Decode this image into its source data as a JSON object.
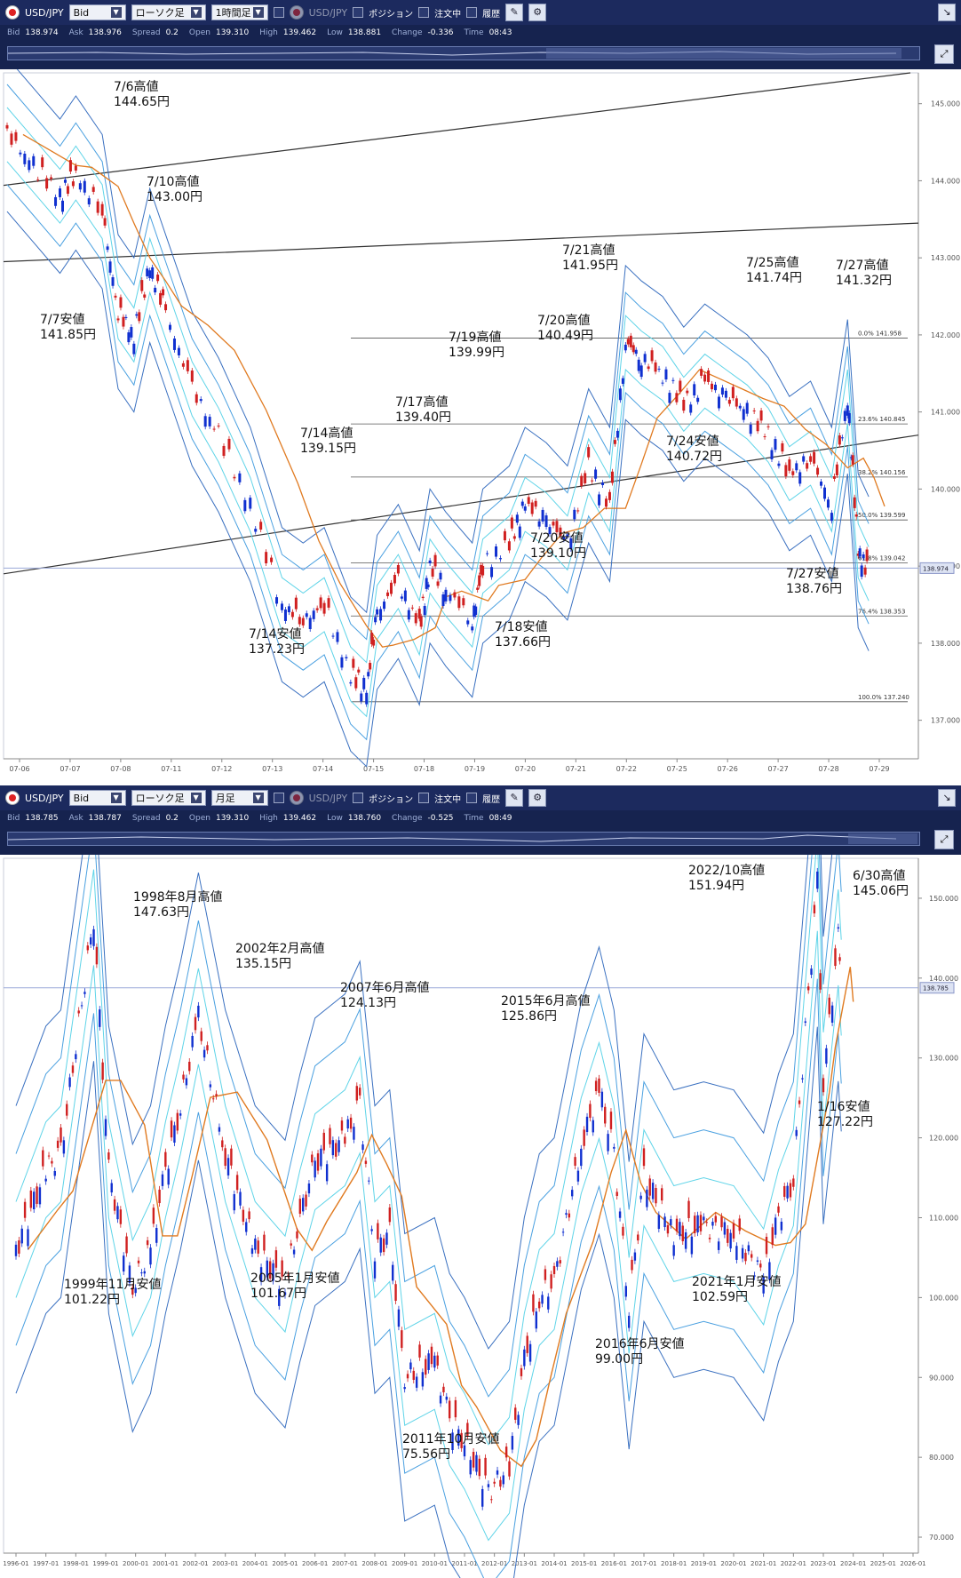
{
  "panels": [
    {
      "toolbar": {
        "symbol": "USD/JPY",
        "price_type": "Bid",
        "chart_type": "ローソク足",
        "timeframe": "1時間足",
        "symbol2": "USD/JPY",
        "position": "ポジション",
        "orders": "注文中",
        "history": "履歴"
      },
      "status": {
        "bid_label": "Bid",
        "bid": "138.974",
        "ask_label": "Ask",
        "ask": "138.976",
        "spread_label": "Spread",
        "spread": "0.2",
        "open_label": "Open",
        "open": "139.310",
        "high_label": "High",
        "high": "139.462",
        "low_label": "Low",
        "low": "138.881",
        "change_label": "Change",
        "change": "-0.336",
        "time_label": "Time",
        "time": "08:43"
      }
    },
    {
      "toolbar": {
        "symbol": "USD/JPY",
        "price_type": "Bid",
        "chart_type": "ローソク足",
        "timeframe": "月足",
        "symbol2": "USD/JPY",
        "position": "ポジション",
        "orders": "注文中",
        "history": "履歴"
      },
      "status": {
        "bid_label": "Bid",
        "bid": "138.785",
        "ask_label": "Ask",
        "ask": "138.787",
        "spread_label": "Spread",
        "spread": "0.2",
        "open_label": "Open",
        "open": "139.310",
        "high_label": "High",
        "high": "139.462",
        "low_label": "Low",
        "low": "138.760",
        "change_label": "Change",
        "change": "-0.525",
        "time_label": "Time",
        "time": "08:49"
      }
    }
  ],
  "chart_data": [
    {
      "type": "line",
      "title": "USD/JPY 1時間足",
      "y_ticks": [
        "137.000",
        "138.000",
        "139.000",
        "140.000",
        "141.000",
        "142.000",
        "143.000",
        "144.000",
        "145.000"
      ],
      "ylim": [
        136.5,
        145.4
      ],
      "current_price": "138.974",
      "x_ticks": [
        "07-06",
        "07-07",
        "07-08",
        "07-11",
        "07-12",
        "07-13",
        "07-14",
        "07-15",
        "07-18",
        "07-19",
        "07-20",
        "07-21",
        "07-22",
        "07-25",
        "07-26",
        "07-27",
        "07-28",
        "07-29"
      ],
      "series": [
        {
          "values": [
            [
              0,
              144.6
            ],
            [
              0.5,
              144.2
            ],
            [
              1,
              143.8
            ],
            [
              1.3,
              144.1
            ],
            [
              1.8,
              143.6
            ],
            [
              2.1,
              142.3
            ],
            [
              2.4,
              142.0
            ],
            [
              2.7,
              142.9
            ],
            [
              3.0,
              142.3
            ],
            [
              3.5,
              141.3
            ],
            [
              4.0,
              140.7
            ],
            [
              4.6,
              139.8
            ],
            [
              5.2,
              138.5
            ],
            [
              5.6,
              138.3
            ],
            [
              6.0,
              138.5
            ],
            [
              6.5,
              137.6
            ],
            [
              6.8,
              137.4
            ],
            [
              7.0,
              138.4
            ],
            [
              7.4,
              138.8
            ],
            [
              7.8,
              138.2
            ],
            [
              8.0,
              139.0
            ],
            [
              8.3,
              138.7
            ],
            [
              8.8,
              138.3
            ],
            [
              9.0,
              139.0
            ],
            [
              9.5,
              139.3
            ],
            [
              9.8,
              139.8
            ],
            [
              10.2,
              139.6
            ],
            [
              10.6,
              139.3
            ],
            [
              11.0,
              140.3
            ],
            [
              11.4,
              139.8
            ],
            [
              11.7,
              141.9
            ],
            [
              12.0,
              141.7
            ],
            [
              12.4,
              141.5
            ],
            [
              12.8,
              141.1
            ],
            [
              13.2,
              141.4
            ],
            [
              13.6,
              141.2
            ],
            [
              14.0,
              141.0
            ],
            [
              14.4,
              140.7
            ],
            [
              14.8,
              140.2
            ],
            [
              15.2,
              140.4
            ],
            [
              15.6,
              139.8
            ],
            [
              15.9,
              141.2
            ],
            [
              16.1,
              139.2
            ],
            [
              16.3,
              138.9
            ]
          ]
        }
      ],
      "fib_levels": [
        {
          "label": "0.0%",
          "value": "141.958"
        },
        {
          "label": "23.6%",
          "value": "140.845"
        },
        {
          "label": "38.2%",
          "value": "140.156"
        },
        {
          "label": "50.0%",
          "value": "139.599"
        },
        {
          "label": "61.8%",
          "value": "139.042"
        },
        {
          "label": "76.4%",
          "value": "138.353"
        },
        {
          "label": "100.0%",
          "value": "137.240"
        }
      ],
      "annotations": [
        [
          "7/6高値",
          "144.65円"
        ],
        [
          "7/10高値",
          "143.00円"
        ],
        [
          "7/7安値",
          "141.85円"
        ],
        [
          "7/14高値",
          "139.15円"
        ],
        [
          "7/17高値",
          "139.40円"
        ],
        [
          "7/19高値",
          "139.99円"
        ],
        [
          "7/20高値",
          "140.49円"
        ],
        [
          "7/21高値",
          "141.95円"
        ],
        [
          "7/25高値",
          "141.74円"
        ],
        [
          "7/27高値",
          "141.32円"
        ],
        [
          "7/24安値",
          "140.72円"
        ],
        [
          "7/20安値",
          "139.10円"
        ],
        [
          "7/27安値",
          "138.76円"
        ],
        [
          "7/14安値",
          "137.23円"
        ],
        [
          "7/18安値",
          "137.66円"
        ]
      ]
    },
    {
      "type": "line",
      "title": "USD/JPY 月足",
      "y_ticks": [
        "70.000",
        "80.000",
        "90.000",
        "100.000",
        "110.000",
        "120.000",
        "130.000",
        "140.000",
        "150.000"
      ],
      "ylim": [
        68,
        155
      ],
      "current_price": "138.785",
      "x_ticks": [
        "1996-01",
        "1997-01",
        "1998-01",
        "1999-01",
        "2000-01",
        "2001-01",
        "2002-01",
        "2003-01",
        "2004-01",
        "2005-01",
        "2006-01",
        "2007-01",
        "2008-01",
        "2009-01",
        "2010-01",
        "2011-01",
        "2012-01",
        "2013-01",
        "2014-01",
        "2015-01",
        "2016-01",
        "2017-01",
        "2018-01",
        "2019-01",
        "2020-01",
        "2021-01",
        "2022-01",
        "2023-01",
        "2024-01",
        "2025-01",
        "2026-01"
      ],
      "series": [
        {
          "values": [
            [
              1996.0,
              106
            ],
            [
              1997.0,
              116
            ],
            [
              1997.5,
              118
            ],
            [
              1998.6,
              147.6
            ],
            [
              1999.1,
              116
            ],
            [
              1999.9,
              101.2
            ],
            [
              2000.5,
              106
            ],
            [
              2001.0,
              116
            ],
            [
              2001.5,
              124
            ],
            [
              2002.1,
              135.2
            ],
            [
              2003.0,
              118
            ],
            [
              2004.0,
              106
            ],
            [
              2005.0,
              101.7
            ],
            [
              2005.5,
              110
            ],
            [
              2006.0,
              117
            ],
            [
              2007.0,
              120
            ],
            [
              2007.5,
              124.1
            ],
            [
              2008.0,
              106
            ],
            [
              2008.5,
              108
            ],
            [
              2009.0,
              90
            ],
            [
              2010.0,
              92
            ],
            [
              2010.5,
              85
            ],
            [
              2011.0,
              82
            ],
            [
              2011.8,
              75.6
            ],
            [
              2012.5,
              79
            ],
            [
              2013.0,
              92
            ],
            [
              2013.5,
              100
            ],
            [
              2014.0,
              102
            ],
            [
              2014.9,
              119
            ],
            [
              2015.5,
              125.9
            ],
            [
              2016.0,
              118
            ],
            [
              2016.5,
              99.0
            ],
            [
              2017.0,
              115
            ],
            [
              2018.0,
              108
            ],
            [
              2019.0,
              109
            ],
            [
              2020.0,
              108
            ],
            [
              2021.0,
              102.6
            ],
            [
              2021.5,
              110
            ],
            [
              2022.0,
              115
            ],
            [
              2022.8,
              151.9
            ],
            [
              2023.0,
              127.2
            ],
            [
              2023.5,
              145.1
            ],
            [
              2023.6,
              138.8
            ]
          ]
        }
      ],
      "annotations": [
        [
          "1998年8月高値",
          "147.63円"
        ],
        [
          "2002年2月高値",
          "135.15円"
        ],
        [
          "2007年6月高値",
          "124.13円"
        ],
        [
          "2015年6月高値",
          "125.86円"
        ],
        [
          "2022/10高値",
          "151.94円"
        ],
        [
          "6/30高値",
          "145.06円"
        ],
        [
          "1/16安値",
          "127.22円"
        ],
        [
          "1999年11月安値",
          "101.22円"
        ],
        [
          "2005年1月安値",
          "101.67円"
        ],
        [
          "2021年1月安値",
          "102.59円"
        ],
        [
          "2016年6月安値",
          "99.00円"
        ],
        [
          "2011年10月安値",
          "75.56円"
        ]
      ]
    }
  ]
}
